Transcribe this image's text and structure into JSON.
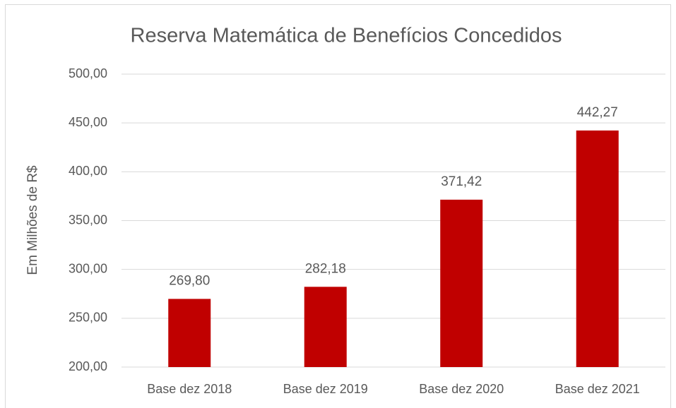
{
  "chart_data": {
    "type": "bar",
    "title": "Reserva Matemática de Benefícios Concedidos",
    "y_label": "Em Milhões de R$",
    "categories": [
      "Base dez 2018",
      "Base dez 2019",
      "Base dez 2020",
      "Base dez 2021"
    ],
    "values": [
      269.8,
      282.18,
      371.42,
      442.27
    ],
    "value_labels": [
      "269,80",
      "282,18",
      "371,42",
      "442,27"
    ],
    "color": "#c00000",
    "ylim": [
      200,
      500
    ],
    "yticks": [
      {
        "value": 200,
        "label": "200,00"
      },
      {
        "value": 250,
        "label": "250,00"
      },
      {
        "value": 300,
        "label": "300,00"
      },
      {
        "value": 350,
        "label": "350,00"
      },
      {
        "value": 400,
        "label": "400,00"
      },
      {
        "value": 450,
        "label": "450,00"
      },
      {
        "value": 500,
        "label": "500,00"
      }
    ],
    "grid": true
  }
}
